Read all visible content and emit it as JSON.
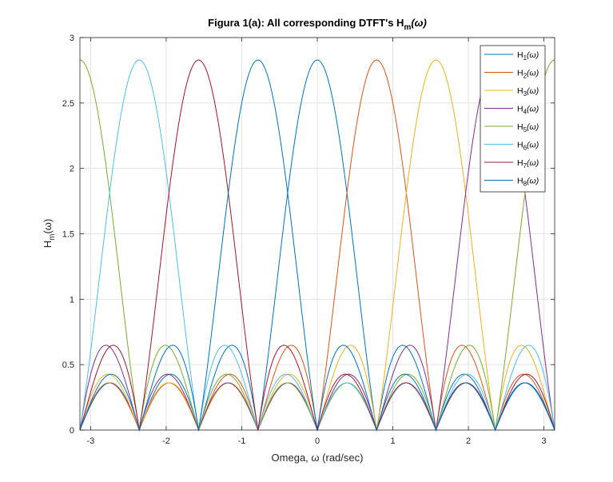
{
  "chart_data": {
    "type": "line",
    "title_prefix": "Figura 1(a): All corresponding DTFT's H",
    "title_sub": "m",
    "title_suffix": "(ω)",
    "xlabel": "Omega, ω (rad/sec)",
    "ylabel_main": "H",
    "ylabel_sub": "m",
    "ylabel_suffix": "(ω)",
    "xlim": [
      -3.14159,
      3.14159
    ],
    "ylim": [
      0,
      3
    ],
    "xticks": [
      -3,
      -2,
      -1,
      0,
      1,
      2,
      3
    ],
    "yticks": [
      0,
      0.5,
      1,
      1.5,
      2,
      2.5,
      3
    ],
    "xtick_labels": [
      "-3",
      "-2",
      "-1",
      "0",
      "1",
      "2",
      "3"
    ],
    "ytick_labels": [
      "0",
      "0.5",
      "1",
      "1.5",
      "2",
      "2.5",
      "3"
    ],
    "grid": true,
    "legend_position": "top-right",
    "filter_length": 8,
    "series": [
      {
        "name": "H",
        "sub": "1",
        "suffix": "(ω)",
        "color": "#0072BD",
        "index": 0
      },
      {
        "name": "H",
        "sub": "2",
        "suffix": "(ω)",
        "color": "#D95319",
        "index": 1
      },
      {
        "name": "H",
        "sub": "3",
        "suffix": "(ω)",
        "color": "#EDB120",
        "index": 2
      },
      {
        "name": "H",
        "sub": "4",
        "suffix": "(ω)",
        "color": "#7E2F8E",
        "index": 3
      },
      {
        "name": "H",
        "sub": "5",
        "suffix": "(ω)",
        "color": "#77AC30",
        "index": 4
      },
      {
        "name": "H",
        "sub": "6",
        "suffix": "(ω)",
        "color": "#4DBEEE",
        "index": 5
      },
      {
        "name": "H",
        "sub": "7",
        "suffix": "(ω)",
        "color": "#A2142F",
        "index": 6
      },
      {
        "name": "H",
        "sub": "8",
        "suffix": "(ω)",
        "color": "#0072BD",
        "index": 7
      }
    ]
  }
}
